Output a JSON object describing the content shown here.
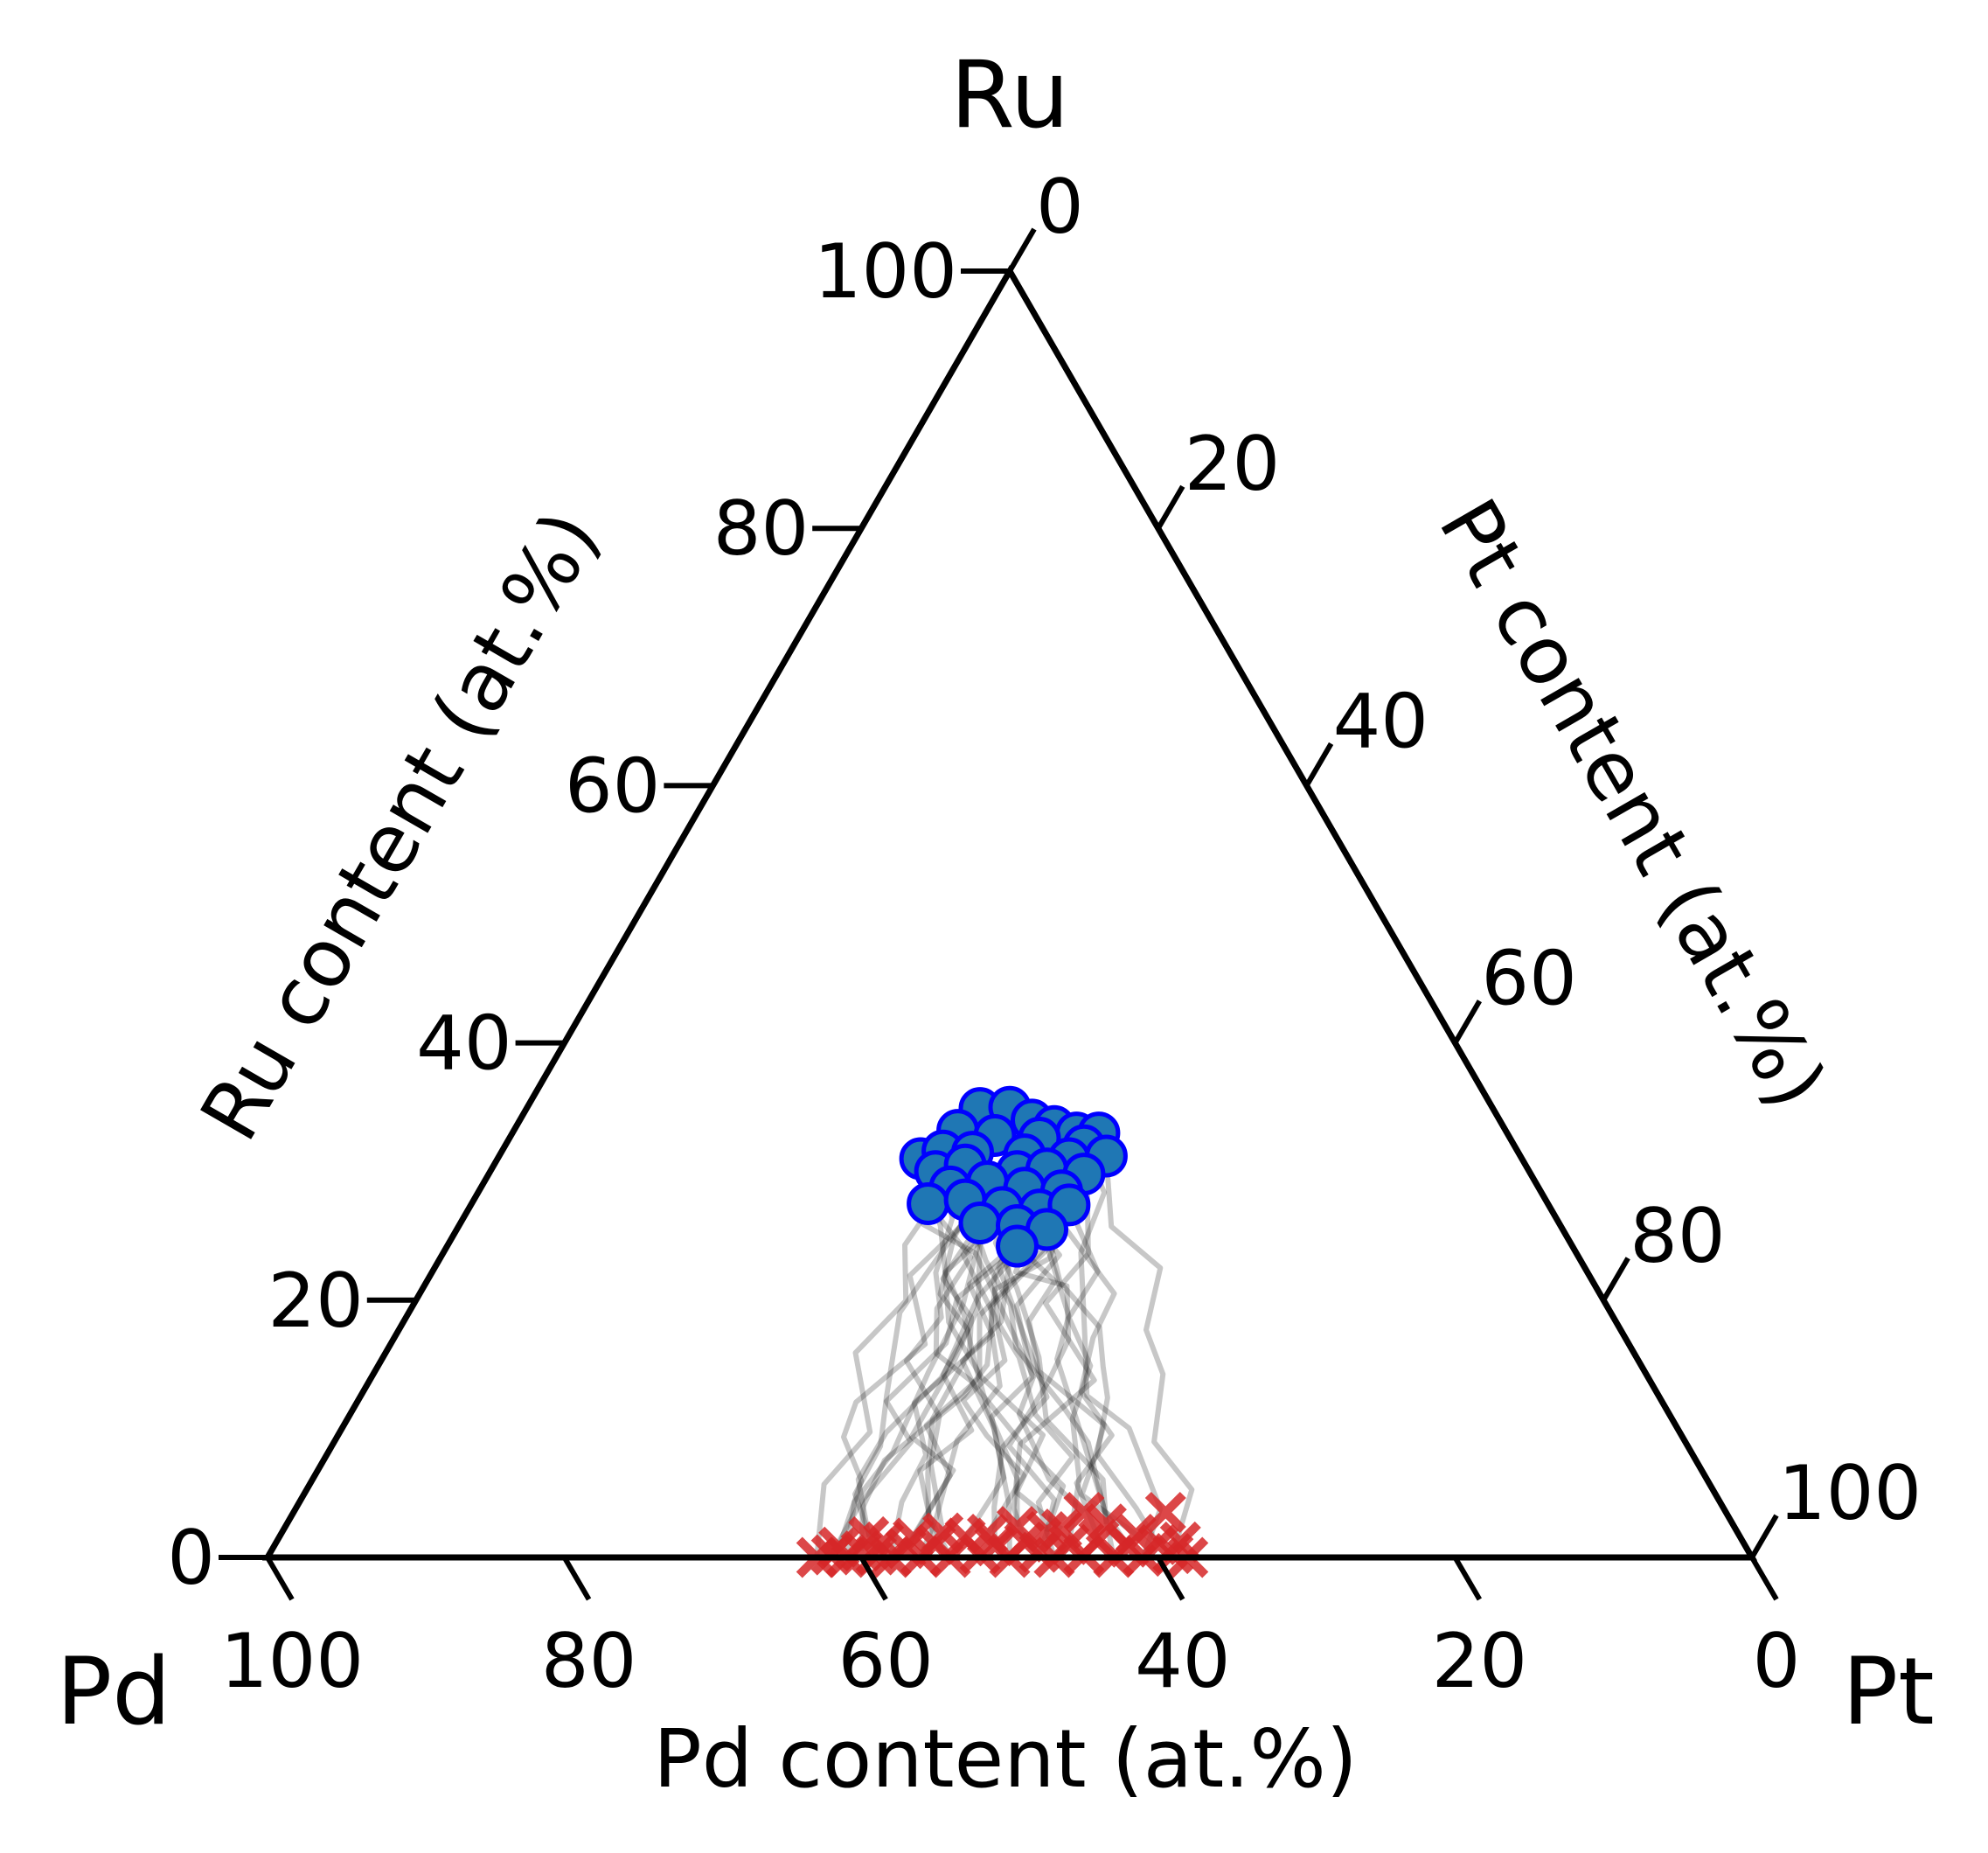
{
  "chart_data": {
    "type": "scatter",
    "subtype": "ternary",
    "vertices": {
      "top": "Ru",
      "left": "Pd",
      "right": "Pt"
    },
    "axis_titles": {
      "left": "Ru content (at.%)",
      "right": "Pt content (at.%)",
      "bottom": "Pd content (at.%)"
    },
    "ticks": {
      "left": [
        "0",
        "20",
        "40",
        "60",
        "80",
        "100"
      ],
      "right": [
        "0",
        "20",
        "40",
        "60",
        "80",
        "100"
      ],
      "bottom": [
        "100",
        "80",
        "60",
        "40",
        "20",
        "0"
      ]
    },
    "series": [
      {
        "marker": "circle",
        "color": "#1f77b4",
        "edge_color": "#0000ff",
        "points": [
          [
            -2.0,
            34.9
          ],
          [
            0.0,
            35.0
          ],
          [
            1.5,
            34.0
          ],
          [
            3.0,
            33.5
          ],
          [
            4.5,
            33.0
          ],
          [
            -3.5,
            33.2
          ],
          [
            -1.0,
            32.8
          ],
          [
            2.0,
            32.6
          ],
          [
            6.0,
            33.0
          ],
          [
            5.0,
            32.0
          ],
          [
            -6.0,
            31.0
          ],
          [
            -4.5,
            31.6
          ],
          [
            -2.5,
            31.5
          ],
          [
            1.0,
            31.3
          ],
          [
            4.0,
            31.0
          ],
          [
            6.5,
            31.2
          ],
          [
            -5.0,
            30.0
          ],
          [
            -3.0,
            30.5
          ],
          [
            0.5,
            30.0
          ],
          [
            2.5,
            30.2
          ],
          [
            5.0,
            29.8
          ],
          [
            -4.0,
            28.8
          ],
          [
            -1.5,
            29.2
          ],
          [
            1.0,
            28.7
          ],
          [
            3.5,
            28.5
          ],
          [
            -5.5,
            27.5
          ],
          [
            -3.0,
            27.8
          ],
          [
            -0.5,
            27.2
          ],
          [
            2.0,
            27.0
          ],
          [
            4.0,
            27.4
          ],
          [
            -2.0,
            26.0
          ],
          [
            0.5,
            25.8
          ],
          [
            2.5,
            25.5
          ],
          [
            0.5,
            24.2
          ]
        ]
      },
      {
        "marker": "cross",
        "color": "#d62728",
        "points": [
          [
            -13.0,
            0.0
          ],
          [
            -12.0,
            0.2
          ],
          [
            -11.0,
            0.0
          ],
          [
            -10.0,
            0.5
          ],
          [
            -9.0,
            0.2
          ],
          [
            -8.5,
            1.2
          ],
          [
            -8.0,
            0.0
          ],
          [
            -7.0,
            0.7
          ],
          [
            -6.0,
            0.1
          ],
          [
            -5.0,
            1.0
          ],
          [
            -4.0,
            0.0
          ],
          [
            -3.0,
            1.5
          ],
          [
            -2.0,
            0.3
          ],
          [
            -1.0,
            0.9
          ],
          [
            0.0,
            0.0
          ],
          [
            1.0,
            1.2
          ],
          [
            2.0,
            0.4
          ],
          [
            3.0,
            0.0
          ],
          [
            4.0,
            1.0
          ],
          [
            5.0,
            0.2
          ],
          [
            6.0,
            1.4
          ],
          [
            7.0,
            0.0
          ],
          [
            8.0,
            0.8
          ],
          [
            9.0,
            0.1
          ],
          [
            10.0,
            1.0
          ],
          [
            11.0,
            0.3
          ],
          [
            12.0,
            0.0
          ],
          [
            -11.5,
            0.8
          ],
          [
            -6.5,
            1.5
          ],
          [
            -1.5,
            1.8
          ],
          [
            3.5,
            2.2
          ],
          [
            8.5,
            1.8
          ],
          [
            5.0,
            3.5
          ],
          [
            10.5,
            3.5
          ],
          [
            -9.5,
            1.6
          ],
          [
            6.5,
            2.6
          ],
          [
            2.5,
            2.0
          ],
          [
            -4.5,
            1.9
          ],
          [
            11.5,
            1.2
          ],
          [
            0.5,
            2.4
          ]
        ]
      }
    ],
    "trajectory_count": 34,
    "trajectory_color": "#000000"
  }
}
